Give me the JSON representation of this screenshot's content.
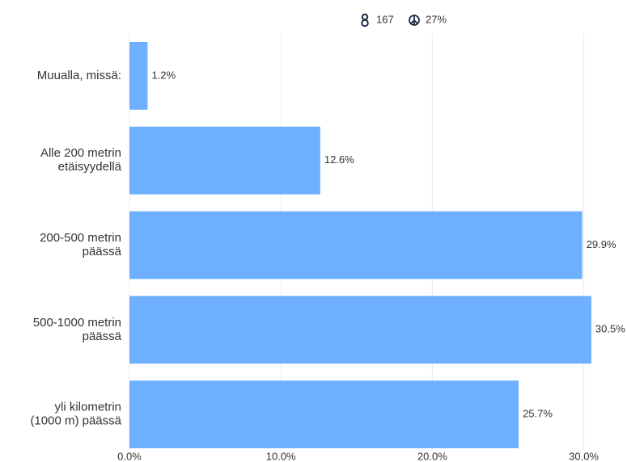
{
  "chart_data": {
    "type": "bar",
    "orientation": "horizontal",
    "annotations": [
      "167",
      "27%"
    ],
    "categories": [
      [
        "Muualla, missä:"
      ],
      [
        "Alle 200 metrin",
        "etäisyydellä"
      ],
      [
        "200-500 metrin",
        "päässä"
      ],
      [
        "500-1000 metrin",
        "päässä"
      ],
      [
        "yli kilometrin",
        "(1000 m) päässä"
      ]
    ],
    "values": [
      1.2,
      12.6,
      29.9,
      30.5,
      25.7
    ],
    "value_labels": [
      "1.2%",
      "12.6%",
      "29.9%",
      "30.5%",
      "25.7%"
    ],
    "color": "#6eb0ff",
    "xlim": [
      0,
      32
    ],
    "xticks": [
      {
        "value": 0,
        "label": "0.0%"
      },
      {
        "value": 10,
        "label": "10.0%"
      },
      {
        "value": 20,
        "label": "20.0%"
      },
      {
        "value": 30,
        "label": "30.0%"
      }
    ],
    "grid": true
  }
}
